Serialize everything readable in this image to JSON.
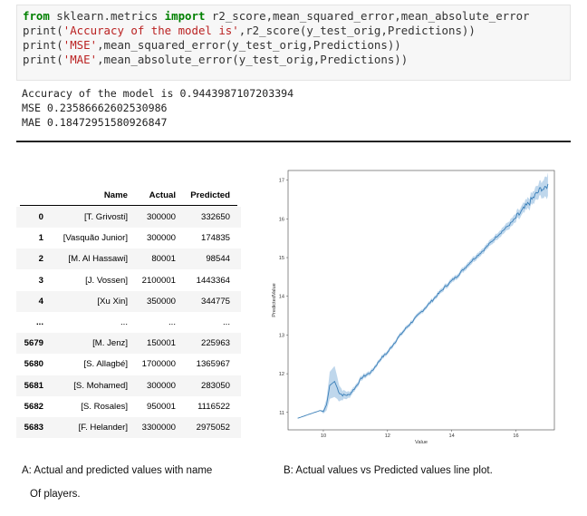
{
  "code_cell": {
    "line1": {
      "kw1": "from",
      "mid": " sklearn.metrics ",
      "kw2": "import",
      "rest": " r2_score,mean_squared_error,mean_absolute_error"
    },
    "line2": {
      "pre": "print(",
      "str": "'Accuracy of the model is'",
      "post": ",r2_score(y_test_orig,Predictions))"
    },
    "line3": {
      "pre": "print(",
      "str": "'MSE'",
      "post": ",mean_squared_error(y_test_orig,Predictions))"
    },
    "line4": {
      "pre": "print(",
      "str": "'MAE'",
      "post": ",mean_absolute_error(y_test_orig,Predictions))"
    }
  },
  "output": {
    "accuracy": "Accuracy of the model is 0.9443987107203394",
    "mse": "MSE 0.23586662602530986",
    "mae": "MAE 0.18472951580926847"
  },
  "dataframe": {
    "columns": [
      "Name",
      "Actual",
      "Predicted"
    ],
    "rows": [
      {
        "index": "0",
        "name": "[T. Grivosti]",
        "actual": "300000",
        "predicted": "332650"
      },
      {
        "index": "1",
        "name": "[Vasquão Junior]",
        "actual": "300000",
        "predicted": "174835"
      },
      {
        "index": "2",
        "name": "[M. Al Hassawi]",
        "actual": "80001",
        "predicted": "98544"
      },
      {
        "index": "3",
        "name": "[J. Vossen]",
        "actual": "2100001",
        "predicted": "1443364"
      },
      {
        "index": "4",
        "name": "[Xu Xin]",
        "actual": "350000",
        "predicted": "344775"
      },
      {
        "index": "...",
        "name": "...",
        "actual": "...",
        "predicted": "..."
      },
      {
        "index": "5679",
        "name": "[M. Jenz]",
        "actual": "150001",
        "predicted": "225963"
      },
      {
        "index": "5680",
        "name": "[S. Allagbé]",
        "actual": "1700000",
        "predicted": "1365967"
      },
      {
        "index": "5681",
        "name": "[S. Mohamed]",
        "actual": "300000",
        "predicted": "283050"
      },
      {
        "index": "5682",
        "name": "[S. Rosales]",
        "actual": "950001",
        "predicted": "1116522"
      },
      {
        "index": "5683",
        "name": "[F. Helander]",
        "actual": "3300000",
        "predicted": "2975052"
      }
    ]
  },
  "chart_data": {
    "type": "line",
    "xlabel": "Value",
    "ylabel": "PredictedValue",
    "xlim": [
      8.9,
      17.2
    ],
    "ylim": [
      10.55,
      17.25
    ],
    "xticks": [
      "10",
      "12",
      "14",
      "16"
    ],
    "yticks": [
      "11",
      "12",
      "13",
      "14",
      "15",
      "16",
      "17"
    ],
    "line_color": "#3a7fb8",
    "band_color": "#a9c9e6",
    "series": [
      {
        "x": [
          9.2,
          9.9,
          10.0,
          10.1,
          10.2,
          10.35,
          10.5,
          10.6,
          10.8,
          11.0,
          11.2,
          11.5,
          11.8,
          12.0,
          12.3,
          12.6,
          13.0,
          13.4,
          13.8,
          14.2,
          14.6,
          15.0,
          15.4,
          15.8,
          16.2,
          16.5,
          16.8,
          16.9,
          17.0
        ],
        "y": [
          10.85,
          11.05,
          11.02,
          11.2,
          11.7,
          11.8,
          11.5,
          11.45,
          11.45,
          11.65,
          11.9,
          12.05,
          12.4,
          12.55,
          12.9,
          13.2,
          13.55,
          13.9,
          14.25,
          14.55,
          14.9,
          15.2,
          15.55,
          15.85,
          16.2,
          16.5,
          16.8,
          16.75,
          16.9
        ],
        "band": [
          0,
          0,
          0.05,
          0.15,
          0.35,
          0.4,
          0.2,
          0.12,
          0.08,
          0.06,
          0.06,
          0.05,
          0.05,
          0.05,
          0.05,
          0.05,
          0.05,
          0.05,
          0.06,
          0.06,
          0.07,
          0.07,
          0.08,
          0.1,
          0.12,
          0.15,
          0.2,
          0.25,
          0.3
        ]
      }
    ]
  },
  "captions": {
    "a_line1": "A: Actual and predicted values with name",
    "a_line2": "Of players.",
    "b": "B: Actual values vs Predicted values line plot."
  }
}
